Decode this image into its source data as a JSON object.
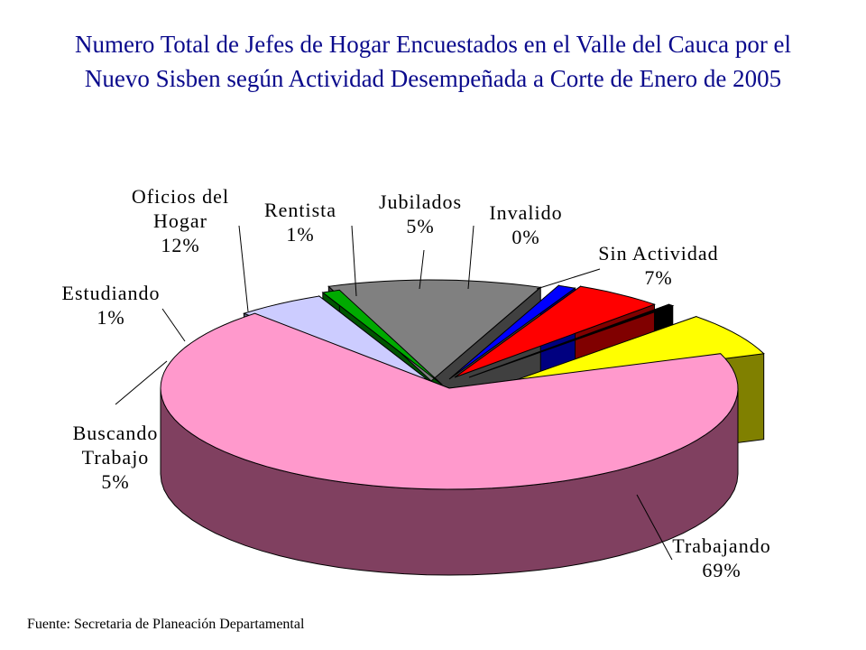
{
  "title": {
    "line1": "Numero Total de Jefes de Hogar Encuestados en el Valle del Cauca por el",
    "line2": "Nuevo Sisben según Actividad Desempeñada a Corte de Enero de 2005"
  },
  "source": "Fuente:  Secretaria de Planeación Departamental",
  "chart_data": {
    "type": "pie",
    "title": "Numero Total de Jefes de Hogar Encuestados en el Valle del Cauca por el Nuevo Sisben según Actividad Desempeñada a Corte de Enero de 2005",
    "style": "3d-exploded",
    "legend": "none",
    "slices": [
      {
        "label": [
          "Trabajando"
        ],
        "percent_label": "69%",
        "value": 69,
        "color": "#ff99cc",
        "side": "#804060"
      },
      {
        "label": [
          "Buscando",
          "Trabajo"
        ],
        "percent_label": "5%",
        "value": 5,
        "color": "#ccccff",
        "side": "#666680"
      },
      {
        "label": [
          "Estudiando"
        ],
        "percent_label": "1%",
        "value": 1,
        "color": "#00aa00",
        "side": "#005500"
      },
      {
        "label": [
          "Oficios del",
          "Hogar"
        ],
        "percent_label": "12%",
        "value": 12,
        "color": "#808080",
        "side": "#404040"
      },
      {
        "label": [
          "Rentista"
        ],
        "percent_label": "1%",
        "value": 1,
        "color": "#0000ff",
        "side": "#000080"
      },
      {
        "label": [
          "Jubilados"
        ],
        "percent_label": "5%",
        "value": 5,
        "color": "#ff0000",
        "side": "#800000"
      },
      {
        "label": [
          "Invalido"
        ],
        "percent_label": "0%",
        "value": 0.3,
        "color": "#000000",
        "side": "#000000"
      },
      {
        "label": [
          "Sin Actividad"
        ],
        "percent_label": "7%",
        "value": 7,
        "color": "#ffff00",
        "side": "#808000"
      }
    ]
  }
}
